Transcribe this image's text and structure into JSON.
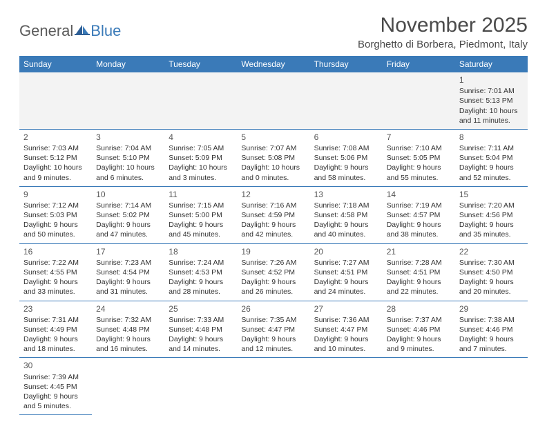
{
  "logo": {
    "part1": "General",
    "part2": "Blue"
  },
  "title": "November 2025",
  "location": "Borghetto di Borbera, Piedmont, Italy",
  "colors": {
    "header_bg": "#3a7ab8",
    "header_text": "#ffffff",
    "cell_alt_bg": "#f3f3f3",
    "border": "#3a7ab8",
    "text": "#333333",
    "title_text": "#4a4a4a",
    "logo_gray": "#5a5a5a",
    "logo_blue": "#3a7ab8"
  },
  "weekdays": [
    "Sunday",
    "Monday",
    "Tuesday",
    "Wednesday",
    "Thursday",
    "Friday",
    "Saturday"
  ],
  "layout": {
    "first_weekday_index": 6,
    "days_in_month": 30
  },
  "days": {
    "1": {
      "sunrise": "7:01 AM",
      "sunset": "5:13 PM",
      "daylight": "10 hours and 11 minutes."
    },
    "2": {
      "sunrise": "7:03 AM",
      "sunset": "5:12 PM",
      "daylight": "10 hours and 9 minutes."
    },
    "3": {
      "sunrise": "7:04 AM",
      "sunset": "5:10 PM",
      "daylight": "10 hours and 6 minutes."
    },
    "4": {
      "sunrise": "7:05 AM",
      "sunset": "5:09 PM",
      "daylight": "10 hours and 3 minutes."
    },
    "5": {
      "sunrise": "7:07 AM",
      "sunset": "5:08 PM",
      "daylight": "10 hours and 0 minutes."
    },
    "6": {
      "sunrise": "7:08 AM",
      "sunset": "5:06 PM",
      "daylight": "9 hours and 58 minutes."
    },
    "7": {
      "sunrise": "7:10 AM",
      "sunset": "5:05 PM",
      "daylight": "9 hours and 55 minutes."
    },
    "8": {
      "sunrise": "7:11 AM",
      "sunset": "5:04 PM",
      "daylight": "9 hours and 52 minutes."
    },
    "9": {
      "sunrise": "7:12 AM",
      "sunset": "5:03 PM",
      "daylight": "9 hours and 50 minutes."
    },
    "10": {
      "sunrise": "7:14 AM",
      "sunset": "5:02 PM",
      "daylight": "9 hours and 47 minutes."
    },
    "11": {
      "sunrise": "7:15 AM",
      "sunset": "5:00 PM",
      "daylight": "9 hours and 45 minutes."
    },
    "12": {
      "sunrise": "7:16 AM",
      "sunset": "4:59 PM",
      "daylight": "9 hours and 42 minutes."
    },
    "13": {
      "sunrise": "7:18 AM",
      "sunset": "4:58 PM",
      "daylight": "9 hours and 40 minutes."
    },
    "14": {
      "sunrise": "7:19 AM",
      "sunset": "4:57 PM",
      "daylight": "9 hours and 38 minutes."
    },
    "15": {
      "sunrise": "7:20 AM",
      "sunset": "4:56 PM",
      "daylight": "9 hours and 35 minutes."
    },
    "16": {
      "sunrise": "7:22 AM",
      "sunset": "4:55 PM",
      "daylight": "9 hours and 33 minutes."
    },
    "17": {
      "sunrise": "7:23 AM",
      "sunset": "4:54 PM",
      "daylight": "9 hours and 31 minutes."
    },
    "18": {
      "sunrise": "7:24 AM",
      "sunset": "4:53 PM",
      "daylight": "9 hours and 28 minutes."
    },
    "19": {
      "sunrise": "7:26 AM",
      "sunset": "4:52 PM",
      "daylight": "9 hours and 26 minutes."
    },
    "20": {
      "sunrise": "7:27 AM",
      "sunset": "4:51 PM",
      "daylight": "9 hours and 24 minutes."
    },
    "21": {
      "sunrise": "7:28 AM",
      "sunset": "4:51 PM",
      "daylight": "9 hours and 22 minutes."
    },
    "22": {
      "sunrise": "7:30 AM",
      "sunset": "4:50 PM",
      "daylight": "9 hours and 20 minutes."
    },
    "23": {
      "sunrise": "7:31 AM",
      "sunset": "4:49 PM",
      "daylight": "9 hours and 18 minutes."
    },
    "24": {
      "sunrise": "7:32 AM",
      "sunset": "4:48 PM",
      "daylight": "9 hours and 16 minutes."
    },
    "25": {
      "sunrise": "7:33 AM",
      "sunset": "4:48 PM",
      "daylight": "9 hours and 14 minutes."
    },
    "26": {
      "sunrise": "7:35 AM",
      "sunset": "4:47 PM",
      "daylight": "9 hours and 12 minutes."
    },
    "27": {
      "sunrise": "7:36 AM",
      "sunset": "4:47 PM",
      "daylight": "9 hours and 10 minutes."
    },
    "28": {
      "sunrise": "7:37 AM",
      "sunset": "4:46 PM",
      "daylight": "9 hours and 9 minutes."
    },
    "29": {
      "sunrise": "7:38 AM",
      "sunset": "4:46 PM",
      "daylight": "9 hours and 7 minutes."
    },
    "30": {
      "sunrise": "7:39 AM",
      "sunset": "4:45 PM",
      "daylight": "9 hours and 5 minutes."
    }
  },
  "labels": {
    "sunrise": "Sunrise:",
    "sunset": "Sunset:",
    "daylight": "Daylight:"
  }
}
